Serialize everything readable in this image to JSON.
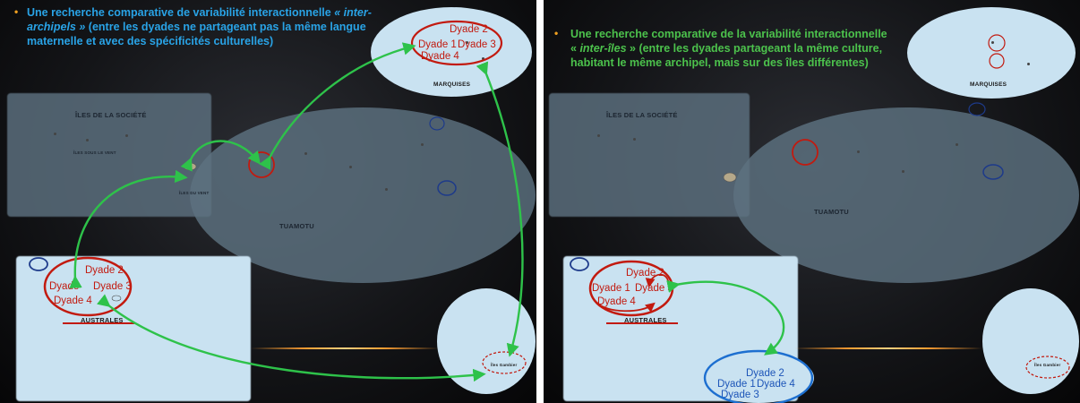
{
  "left": {
    "bullet": "•",
    "title_part1": "Une recherche comparative de variabilité interactionnelle ",
    "title_em": "« inter-archipels »",
    "title_part2": " (entre les dyades ne partageant pas la même langue maternelle et avec des spécificités culturelles)",
    "labels": {
      "societe": "ÎLES DE LA SOCIÉTÉ",
      "marquises": "MARQUISES",
      "tuamotu": "TUAMOTU",
      "australes": "AUSTRALES",
      "sous_le_vent": "ÎLES SOUS LE VENT",
      "du_vent": "ÎLES DU VENT",
      "gambier": "Îles Gambier"
    },
    "marquises_dyades": [
      "Dyade 2",
      "Dyade 1",
      "Dyade  3",
      "Dyade 4"
    ],
    "australes_dyades": [
      "Dyade 2",
      "Dyade",
      "Dyade   3",
      "Dyade 4"
    ]
  },
  "right": {
    "bullet": "•",
    "title_part1": "Une recherche comparative de la variabilité interactionnelle « ",
    "title_em": "inter-îles",
    "title_part2": " » (entre les dyades partageant la même culture,  habitant le même archipel, mais sur des îles différentes)",
    "labels": {
      "societe": "ÎLES DE LA SOCIÉTÉ",
      "marquises": "MARQUISES",
      "tuamotu": "TUAMOTU",
      "australes": "AUSTRALES",
      "gambier": "Îles Gambier"
    },
    "australes_dyades": [
      "Dyade 2",
      "Dyade 1",
      "Dyade 3",
      "Dyade 4"
    ],
    "blue_dyades": [
      "Dyade 2",
      "Dyade 1",
      "Dyade 4",
      "Dyade 3"
    ]
  }
}
